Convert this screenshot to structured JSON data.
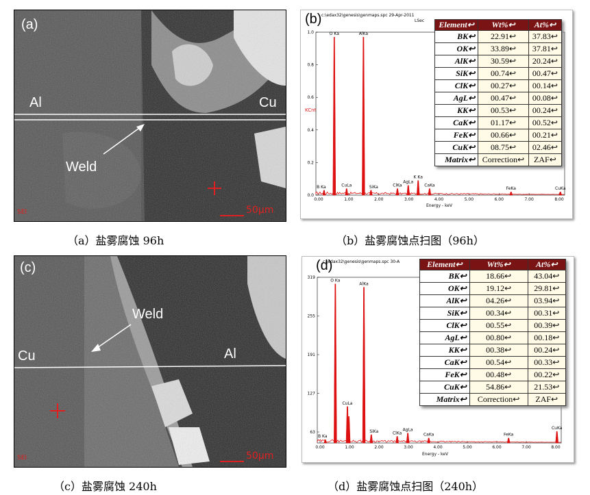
{
  "panels": {
    "a": {
      "label": "(a)",
      "left_label": "Al",
      "right_label": "Cu",
      "weld_label": "Weld",
      "scale": "50μm",
      "detector": "SEI",
      "caption": "（a）盐雾腐蚀 96h"
    },
    "b": {
      "label": "(b)",
      "header": "c:\\edax32\\genesis\\genmaps.spc   29-Apr-2011",
      "header2": "LSec",
      "y_axis": "KCnt",
      "x_axis": "Energy - keV",
      "y_ticks": [
        "1.0",
        "0.8",
        "0.6",
        "0.4",
        "0.2",
        "0.0"
      ],
      "x_ticks": [
        "0.00",
        "1.00",
        "2.00",
        "3.00",
        "4.00",
        "5.00",
        "6.00",
        "7.00",
        "8.00"
      ],
      "peaks": [
        "O Ka",
        "AlKa",
        "B Ka",
        "CuLa",
        "SiKa",
        "ClKa",
        "AgLa",
        "K Ka",
        "CaKa",
        "FeKa",
        "CuKa"
      ],
      "caption": "（b）盐雾腐蚀点扫图（96h）"
    },
    "c": {
      "label": "(c)",
      "left_label": "Cu",
      "right_label": "Al",
      "weld_label": "Weld",
      "scale": "50μm",
      "detector": "SEI",
      "caption": "（c）盐雾腐蚀 240h"
    },
    "d": {
      "label": "(d)",
      "header": "c:\\edax32\\genesis\\genmaps.spc   30-A",
      "y_axis": "",
      "x_axis": "Energy - keV",
      "y_ticks": [
        "319",
        "255",
        "191",
        "127",
        "63"
      ],
      "x_ticks": [
        "0.00",
        "1.00",
        "2.00",
        "3.00",
        "4.00",
        "5.00",
        "6.00",
        "7.00",
        "8.00"
      ],
      "peaks": [
        "O Ka",
        "AlKa",
        "B Ka",
        "CuLa",
        "SiKa",
        "ClKa",
        "AgLa",
        "CaKa",
        "FeKa",
        "CuKa"
      ],
      "caption": "（d）盐雾腐蚀点扫图（240h）"
    }
  },
  "tables": {
    "header": [
      "Element↩",
      "Wt%↩",
      "At%↩"
    ],
    "b": [
      [
        "BK↩",
        "22.91↩",
        "37.83↩"
      ],
      [
        "OK↩",
        "33.89↩",
        "37.81↩"
      ],
      [
        "AlK↩",
        "30.59↩",
        "20.24↩"
      ],
      [
        "SiK↩",
        "00.74↩",
        "00.47↩"
      ],
      [
        "ClK↩",
        "00.27↩",
        "00.14↩"
      ],
      [
        "AgL↩",
        "00.47↩",
        "00.08↩"
      ],
      [
        "KK↩",
        "00.53↩",
        "00.24↩"
      ],
      [
        "CaK↩",
        "01.17↩",
        "00.52↩"
      ],
      [
        "FeK↩",
        "00.66↩",
        "00.21↩"
      ],
      [
        "CuK↩",
        "08.75↩",
        "02.46↩"
      ],
      [
        "Matrix↩",
        "Correction↩",
        "ZAF↩"
      ]
    ],
    "d": [
      [
        "BK↩",
        "18.66↩",
        "43.04↩"
      ],
      [
        "OK↩",
        "19.12↩",
        "29.81↩"
      ],
      [
        "AlK↩",
        "04.26↩",
        "03.94↩"
      ],
      [
        "SiK↩",
        "00.34↩",
        "00.31↩"
      ],
      [
        "ClK↩",
        "00.55↩",
        "00.39↩"
      ],
      [
        "AgL↩",
        "00.80↩",
        "00.18↩"
      ],
      [
        "KK↩",
        "00.38↩",
        "00.24↩"
      ],
      [
        "CaK↩",
        "00.54↩",
        "00.33↩"
      ],
      [
        "FeK↩",
        "00.48↩",
        "00.22↩"
      ],
      [
        "CuK↩",
        "54.86↩",
        "21.53↩"
      ],
      [
        "Matrix↩",
        "Correction↩",
        "ZAF↩"
      ]
    ]
  },
  "colors": {
    "spectrum": "#dd1111",
    "table_header": "#7a1414",
    "marker": "#e02020"
  }
}
